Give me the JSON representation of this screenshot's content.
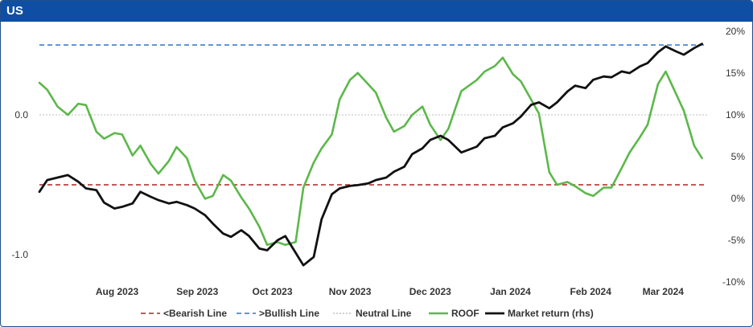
{
  "panel": {
    "title": "US"
  },
  "colors": {
    "bearish": "#b22222",
    "bullish": "#2e75c9",
    "neutral": "#bdbdbd",
    "roof": "#5cb84a",
    "market": "#111111",
    "title_bg": "#0f4fa3"
  },
  "chart_data": {
    "type": "line",
    "title": "US",
    "x_tick_labels": [
      "Aug 2023",
      "Sep 2023",
      "Oct 2023",
      "Nov 2023",
      "Dec 2023",
      "Jan 2024",
      "Feb 2024",
      "Mar 2024"
    ],
    "x_range": [
      "2023-07-17",
      "2024-03-31"
    ],
    "left_axis": {
      "ticks": [
        "0.0",
        "-1.0"
      ],
      "tick_values": [
        0.0,
        -1.0
      ],
      "range": [
        -1.18,
        0.56
      ]
    },
    "right_axis": {
      "ticks": [
        "20%",
        "15%",
        "10%",
        "5%",
        "0%",
        "-5%",
        "-10%"
      ],
      "tick_values": [
        20,
        15,
        10,
        5,
        0,
        -5,
        -10
      ],
      "range": [
        -10,
        20
      ],
      "unit": "%"
    },
    "grid": false,
    "legend_position": "bottom",
    "reference_lines": [
      {
        "name": "<Bearish Line",
        "axis": "left",
        "value": -0.5,
        "style": "dashed"
      },
      {
        "name": ">Bullish Line",
        "axis": "left",
        "value": 0.5,
        "style": "dashed"
      },
      {
        "name": "Neutral Line",
        "axis": "left",
        "value": 0.0,
        "style": "dotted"
      }
    ],
    "series": [
      {
        "name": "ROOF",
        "axis": "left",
        "x": [
          "2023-07-17",
          "2023-07-20",
          "2023-07-24",
          "2023-07-28",
          "2023-08-01",
          "2023-08-04",
          "2023-08-08",
          "2023-08-11",
          "2023-08-15",
          "2023-08-18",
          "2023-08-22",
          "2023-08-25",
          "2023-08-29",
          "2023-09-01",
          "2023-09-05",
          "2023-09-08",
          "2023-09-12",
          "2023-09-15",
          "2023-09-19",
          "2023-09-22",
          "2023-09-26",
          "2023-09-29",
          "2023-10-03",
          "2023-10-06",
          "2023-10-10",
          "2023-10-13",
          "2023-10-17",
          "2023-10-20",
          "2023-10-24",
          "2023-10-27",
          "2023-10-31",
          "2023-11-03",
          "2023-11-07",
          "2023-11-10",
          "2023-11-14",
          "2023-11-17",
          "2023-11-21",
          "2023-11-24",
          "2023-11-28",
          "2023-12-01",
          "2023-12-05",
          "2023-12-08",
          "2023-12-12",
          "2023-12-15",
          "2023-12-19",
          "2023-12-22",
          "2023-12-27",
          "2024-01-02",
          "2024-01-05",
          "2024-01-09",
          "2024-01-12",
          "2024-01-16",
          "2024-01-19",
          "2024-01-23",
          "2024-01-26",
          "2024-01-30",
          "2024-02-02",
          "2024-02-06",
          "2024-02-09",
          "2024-02-13",
          "2024-02-16",
          "2024-02-20",
          "2024-02-23",
          "2024-02-27",
          "2024-03-01",
          "2024-03-05",
          "2024-03-08",
          "2024-03-12",
          "2024-03-15",
          "2024-03-19",
          "2024-03-22",
          "2024-03-26",
          "2024-03-29"
        ],
        "values": [
          0.23,
          0.18,
          0.06,
          0.0,
          0.08,
          0.07,
          -0.12,
          -0.17,
          -0.13,
          -0.14,
          -0.29,
          -0.22,
          -0.35,
          -0.42,
          -0.33,
          -0.23,
          -0.31,
          -0.47,
          -0.6,
          -0.58,
          -0.43,
          -0.47,
          -0.59,
          -0.67,
          -0.8,
          -0.93,
          -0.91,
          -0.93,
          -0.91,
          -0.52,
          -0.34,
          -0.24,
          -0.14,
          0.11,
          0.25,
          0.3,
          0.22,
          0.16,
          -0.02,
          -0.12,
          -0.08,
          0.0,
          0.06,
          -0.07,
          -0.18,
          -0.1,
          0.17,
          0.25,
          0.31,
          0.35,
          0.41,
          0.29,
          0.24,
          0.11,
          0.01,
          -0.41,
          -0.5,
          -0.48,
          -0.51,
          -0.56,
          -0.58,
          -0.52,
          -0.52,
          -0.38,
          -0.27,
          -0.16,
          -0.07,
          0.22,
          0.31,
          0.15,
          0.03,
          -0.22,
          -0.31
        ]
      },
      {
        "name": "Market return (rhs)",
        "axis": "right",
        "x": [
          "2023-07-17",
          "2023-07-20",
          "2023-07-24",
          "2023-07-28",
          "2023-08-01",
          "2023-08-04",
          "2023-08-08",
          "2023-08-11",
          "2023-08-15",
          "2023-08-18",
          "2023-08-22",
          "2023-08-25",
          "2023-08-29",
          "2023-09-01",
          "2023-09-05",
          "2023-09-08",
          "2023-09-12",
          "2023-09-15",
          "2023-09-19",
          "2023-09-22",
          "2023-09-26",
          "2023-09-29",
          "2023-10-03",
          "2023-10-06",
          "2023-10-10",
          "2023-10-13",
          "2023-10-17",
          "2023-10-20",
          "2023-10-24",
          "2023-10-27",
          "2023-10-31",
          "2023-11-03",
          "2023-11-07",
          "2023-11-10",
          "2023-11-14",
          "2023-11-17",
          "2023-11-21",
          "2023-11-24",
          "2023-11-28",
          "2023-12-01",
          "2023-12-05",
          "2023-12-08",
          "2023-12-12",
          "2023-12-15",
          "2023-12-19",
          "2023-12-22",
          "2023-12-27",
          "2024-01-02",
          "2024-01-05",
          "2024-01-09",
          "2024-01-12",
          "2024-01-16",
          "2024-01-19",
          "2024-01-23",
          "2024-01-26",
          "2024-01-30",
          "2024-02-02",
          "2024-02-06",
          "2024-02-09",
          "2024-02-13",
          "2024-02-16",
          "2024-02-20",
          "2024-02-23",
          "2024-02-27",
          "2024-03-01",
          "2024-03-05",
          "2024-03-08",
          "2024-03-12",
          "2024-03-15",
          "2024-03-19",
          "2024-03-22",
          "2024-03-26",
          "2024-03-29"
        ],
        "values": [
          0.8,
          2.2,
          2.5,
          2.8,
          2.0,
          1.2,
          1.0,
          -0.5,
          -1.2,
          -1.0,
          -0.6,
          0.8,
          0.2,
          -0.2,
          -0.6,
          -0.4,
          -0.8,
          -1.2,
          -2.0,
          -3.0,
          -4.2,
          -4.6,
          -3.8,
          -4.5,
          -6.0,
          -6.2,
          -5.0,
          -4.5,
          -6.5,
          -8.0,
          -7.0,
          -2.5,
          0.5,
          1.2,
          1.5,
          1.6,
          1.8,
          2.2,
          2.5,
          3.2,
          3.8,
          5.3,
          6.0,
          7.0,
          7.5,
          7.0,
          5.5,
          6.2,
          7.2,
          7.5,
          8.5,
          9.0,
          9.8,
          11.2,
          11.5,
          10.8,
          11.5,
          12.8,
          13.5,
          13.2,
          14.2,
          14.6,
          14.5,
          15.2,
          15.0,
          15.8,
          16.2,
          17.5,
          18.2,
          17.6,
          17.2,
          18.0,
          18.5
        ]
      }
    ],
    "legend": [
      "<Bearish Line",
      ">Bullish Line",
      "Neutral Line",
      "ROOF",
      "Market return (rhs)"
    ]
  }
}
